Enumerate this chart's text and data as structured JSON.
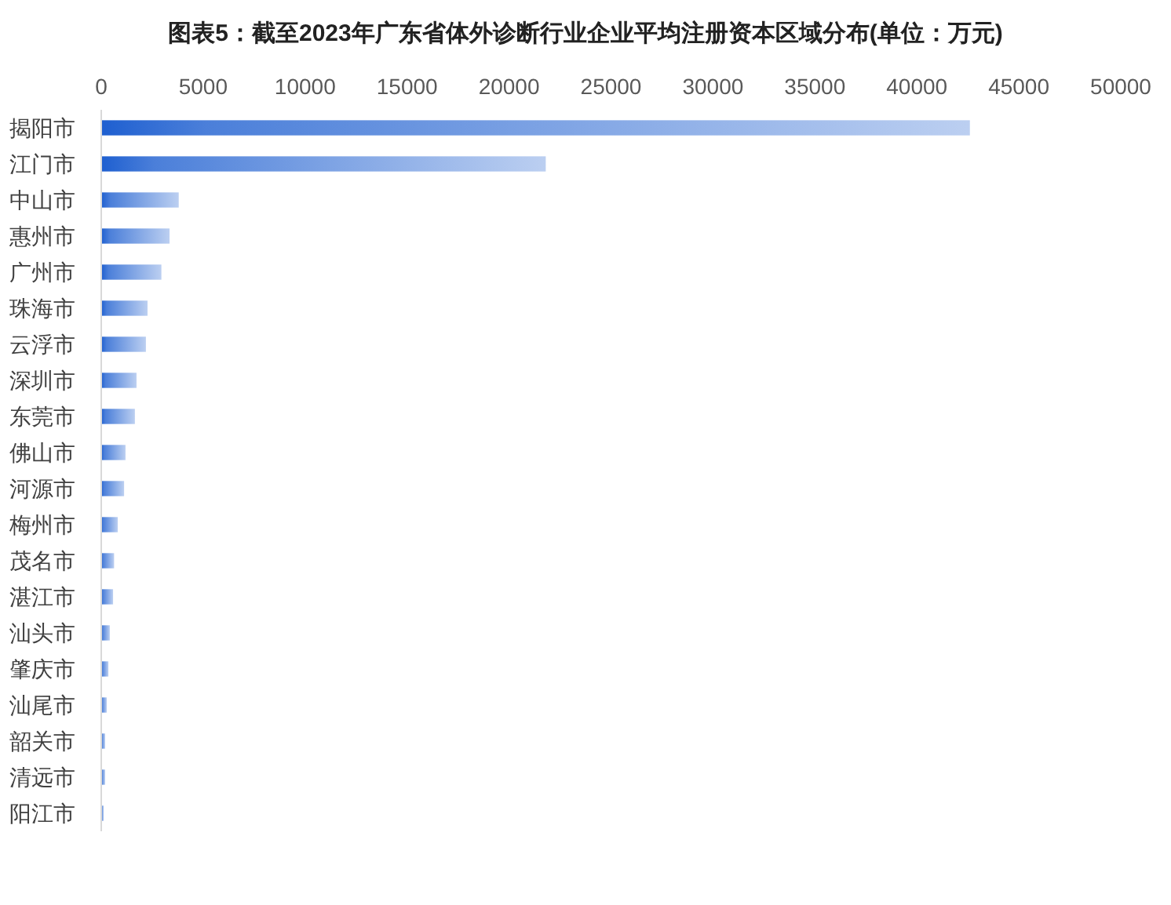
{
  "chart_data": {
    "type": "bar",
    "orientation": "horizontal",
    "title": "图表5：截至2023年广东省体外诊断行业企业平均注册资本区域分布(单位：万元)",
    "categories": [
      "揭阳市",
      "江门市",
      "中山市",
      "惠州市",
      "广州市",
      "珠海市",
      "云浮市",
      "深圳市",
      "东莞市",
      "佛山市",
      "河源市",
      "梅州市",
      "茂名市",
      "湛江市",
      "汕头市",
      "肇庆市",
      "汕尾市",
      "韶关市",
      "清远市",
      "阳江市"
    ],
    "values": [
      42600,
      21800,
      3800,
      3350,
      2950,
      2270,
      2190,
      1730,
      1650,
      1190,
      1120,
      810,
      630,
      580,
      420,
      350,
      270,
      190,
      190,
      120
    ],
    "color": "#1e5fd0",
    "xlim": [
      0,
      50000
    ],
    "xticks": [
      0,
      5000,
      10000,
      15000,
      20000,
      25000,
      30000,
      35000,
      40000,
      45000,
      50000
    ],
    "grid": false
  }
}
